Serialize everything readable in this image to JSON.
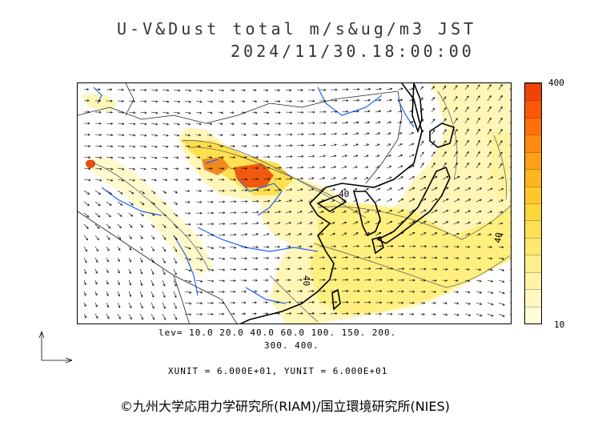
{
  "title": {
    "line1": "U-V&Dust total m/s&ug/m3 JST",
    "line2": "2024/11/30.18:00:00"
  },
  "colorbar": {
    "max_label": "400",
    "min_label": "10",
    "colors": [
      "#fffdd8",
      "#fff8c0",
      "#fff3a6",
      "#ffee8c",
      "#ffe870",
      "#ffe055",
      "#ffd63a",
      "#ffc82a",
      "#ffb61e",
      "#ffa018",
      "#ff8a12",
      "#ff700c",
      "#ff5708",
      "#f04405"
    ]
  },
  "contour_levels": {
    "line1": "lev= 10.0 20.0 40.0 60.0 100. 150. 200.",
    "line2": "300. 400."
  },
  "contour_labels": [
    "40",
    "40",
    "40"
  ],
  "units_text": "XUNIT = 6.000E+01, YUNIT = 6.000E+01",
  "copyright": "©九州大学応用力学研究所(RIAM)/国立環境研究所(NIES)",
  "palette": {
    "coast": "#000000",
    "rivers": "#1e64ff",
    "borders": "#333333",
    "dust_low": "#fff6b0",
    "dust_mid": "#ffd84a",
    "dust_high": "#f05a10"
  }
}
